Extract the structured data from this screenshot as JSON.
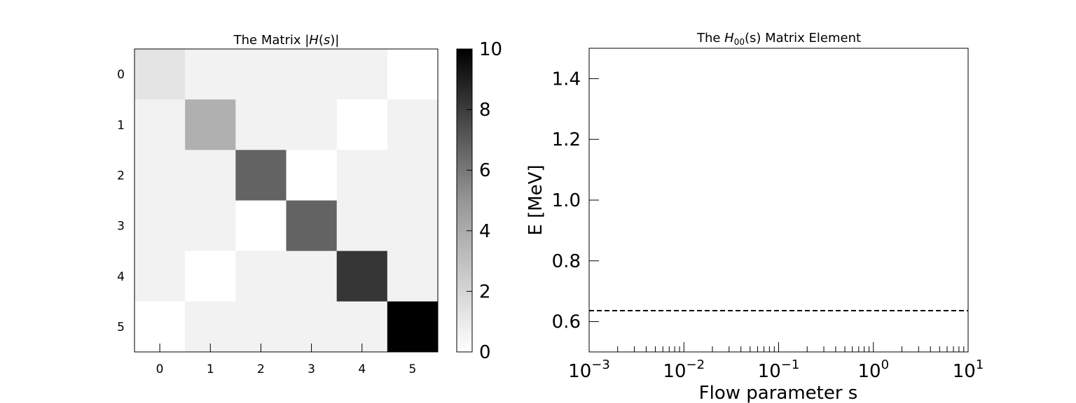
{
  "chart_data": [
    {
      "type": "heatmap",
      "title": "The Matrix |H(s)|",
      "title_parts": {
        "pre": "The Matrix |",
        "italic": "H",
        "mid": "(",
        "italic2": "s",
        "post": ")|"
      },
      "x_ticks": [
        "0",
        "1",
        "2",
        "3",
        "4",
        "5"
      ],
      "y_ticks": [
        "0",
        "1",
        "2",
        "3",
        "4",
        "5"
      ],
      "matrix": [
        [
          1.0,
          0.5,
          0.5,
          0.5,
          0.5,
          0.0
        ],
        [
          0.5,
          3.0,
          0.5,
          0.5,
          0.0,
          0.5
        ],
        [
          0.5,
          0.5,
          6.0,
          0.0,
          0.5,
          0.5
        ],
        [
          0.5,
          0.5,
          0.0,
          6.0,
          0.5,
          0.5
        ],
        [
          0.5,
          0.0,
          0.5,
          0.5,
          7.8,
          0.5
        ],
        [
          0.0,
          0.5,
          0.5,
          0.5,
          0.5,
          10.0
        ]
      ],
      "colormap": "Greys",
      "vmin": 0,
      "vmax": 10,
      "colorbar_ticks": [
        "0",
        "2",
        "4",
        "6",
        "8",
        "10"
      ]
    },
    {
      "type": "line",
      "title_parts": {
        "pre": "The ",
        "italic": "H",
        "sub": "00",
        "post": "(s) Matrix Element"
      },
      "xlabel": "Flow parameter s",
      "ylabel": "E [MeV]",
      "xscale": "log",
      "xlim": [
        0.001,
        10
      ],
      "ylim": [
        0.5,
        1.5
      ],
      "x_tick_exponents": [
        "-3",
        "-2",
        "-1",
        "0",
        "1"
      ],
      "y_ticks": [
        "0.6",
        "0.8",
        "1.0",
        "1.2",
        "1.4"
      ],
      "series": [
        {
          "style": "dashed",
          "color": "#000000",
          "x": [
            0.001,
            10
          ],
          "y": [
            0.636,
            0.636
          ]
        }
      ]
    }
  ]
}
